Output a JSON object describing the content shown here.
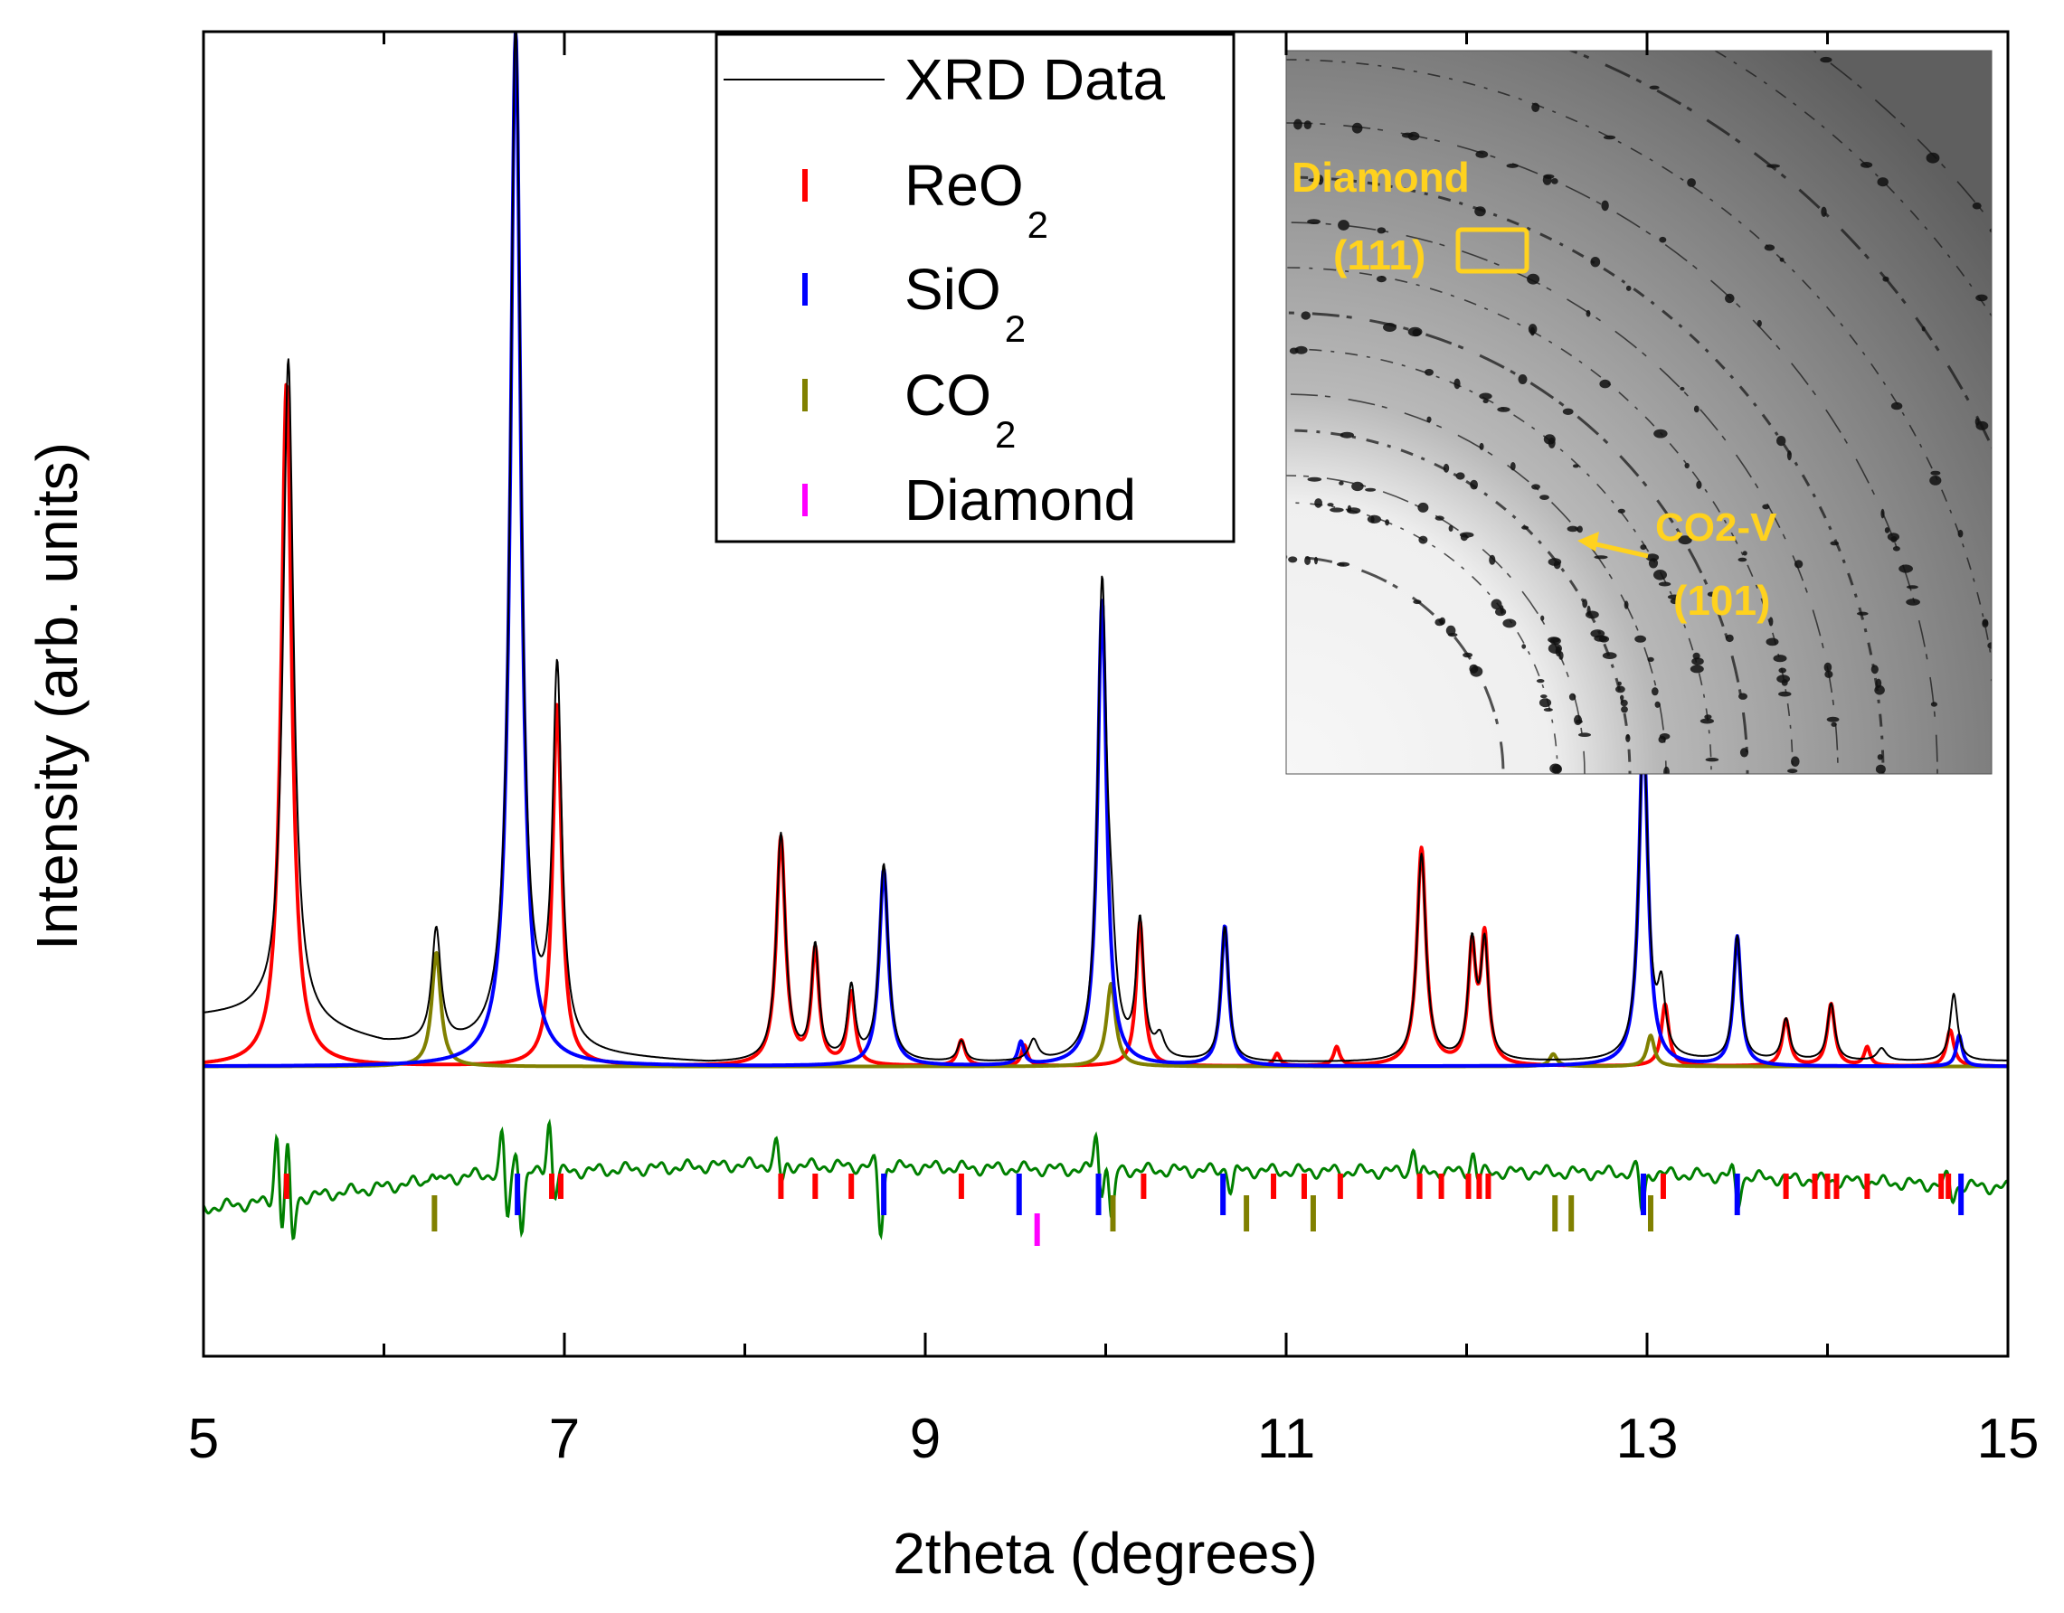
{
  "chart_data": {
    "type": "line",
    "title": "",
    "xlabel": "2theta (degrees)",
    "ylabel": "Intensity (arb. units)",
    "xlim": [
      5,
      15
    ],
    "ylim": [
      -0.28,
      1.0
    ],
    "yticks_labeled": false,
    "xticks": [
      5,
      7,
      9,
      11,
      13,
      15
    ],
    "xtick_labels": [
      "5",
      "7",
      "9",
      "11",
      "13",
      "15"
    ],
    "minor_xticks": [
      6,
      8,
      10,
      12,
      14
    ],
    "legend": {
      "placement": "top-center",
      "entries": [
        {
          "label": "XRD Data",
          "sub": "",
          "marker": "line",
          "color": "#000000"
        },
        {
          "label": "ReO",
          "sub": "2",
          "marker": "tick",
          "color": "#ff0000"
        },
        {
          "label": "SiO",
          "sub": "2",
          "marker": "tick",
          "color": "#0000ff"
        },
        {
          "label": "CO",
          "sub": "2",
          "marker": "tick",
          "color": "#808000"
        },
        {
          "label": "Diamond",
          "sub": "",
          "marker": "tick",
          "color": "#ff00ff"
        }
      ]
    },
    "series": [
      {
        "name": "ReO2",
        "color": "#ff0000",
        "baseline": 0,
        "peaks": [
          {
            "x": 5.46,
            "h": 0.66,
            "w": 0.035
          },
          {
            "x": 6.96,
            "h": 0.35,
            "w": 0.03
          },
          {
            "x": 8.2,
            "h": 0.22,
            "w": 0.03
          },
          {
            "x": 8.39,
            "h": 0.11,
            "w": 0.025
          },
          {
            "x": 8.59,
            "h": 0.07,
            "w": 0.025
          },
          {
            "x": 9.2,
            "h": 0.025,
            "w": 0.025
          },
          {
            "x": 9.55,
            "h": 0.02,
            "w": 0.02
          },
          {
            "x": 10.19,
            "h": 0.14,
            "w": 0.025
          },
          {
            "x": 10.95,
            "h": 0.012,
            "w": 0.02
          },
          {
            "x": 11.28,
            "h": 0.018,
            "w": 0.02
          },
          {
            "x": 11.75,
            "h": 0.21,
            "w": 0.03
          },
          {
            "x": 12.03,
            "h": 0.11,
            "w": 0.025
          },
          {
            "x": 12.1,
            "h": 0.12,
            "w": 0.025
          },
          {
            "x": 13.1,
            "h": 0.06,
            "w": 0.025
          },
          {
            "x": 13.77,
            "h": 0.045,
            "w": 0.025
          },
          {
            "x": 14.02,
            "h": 0.06,
            "w": 0.025
          },
          {
            "x": 14.22,
            "h": 0.018,
            "w": 0.02
          },
          {
            "x": 14.68,
            "h": 0.035,
            "w": 0.025
          }
        ]
      },
      {
        "name": "SiO2",
        "color": "#0000ff",
        "baseline": 0,
        "peaks": [
          {
            "x": 6.73,
            "h": 1.0,
            "w": 0.035
          },
          {
            "x": 8.77,
            "h": 0.19,
            "w": 0.03
          },
          {
            "x": 9.53,
            "h": 0.022,
            "w": 0.02
          },
          {
            "x": 9.98,
            "h": 0.45,
            "w": 0.03
          },
          {
            "x": 10.66,
            "h": 0.135,
            "w": 0.025
          },
          {
            "x": 12.98,
            "h": 0.33,
            "w": 0.03
          },
          {
            "x": 13.5,
            "h": 0.125,
            "w": 0.025
          },
          {
            "x": 14.73,
            "h": 0.03,
            "w": 0.02
          }
        ]
      },
      {
        "name": "CO2",
        "color": "#808000",
        "baseline": 0,
        "peaks": [
          {
            "x": 6.29,
            "h": 0.11,
            "w": 0.03
          },
          {
            "x": 10.03,
            "h": 0.08,
            "w": 0.03
          },
          {
            "x": 12.48,
            "h": 0.012,
            "w": 0.025
          },
          {
            "x": 13.02,
            "h": 0.03,
            "w": 0.025
          }
        ]
      },
      {
        "name": "XRD Data",
        "color": "#000000",
        "baseline": "sloped",
        "baseline_points": [
          [
            5.0,
            0.048
          ],
          [
            5.3,
            0.05
          ],
          [
            6.0,
            0.02
          ],
          [
            7.8,
            0.002
          ],
          [
            15.0,
            0.005
          ]
        ],
        "peaks": [
          {
            "x": 5.47,
            "h": 0.64,
            "w": 0.035
          },
          {
            "x": 6.29,
            "h": 0.11,
            "w": 0.03
          },
          {
            "x": 6.73,
            "h": 0.99,
            "w": 0.035
          },
          {
            "x": 6.96,
            "h": 0.36,
            "w": 0.03
          },
          {
            "x": 8.2,
            "h": 0.22,
            "w": 0.03
          },
          {
            "x": 8.39,
            "h": 0.11,
            "w": 0.025
          },
          {
            "x": 8.59,
            "h": 0.07,
            "w": 0.025
          },
          {
            "x": 8.77,
            "h": 0.19,
            "w": 0.03
          },
          {
            "x": 9.2,
            "h": 0.02,
            "w": 0.025
          },
          {
            "x": 9.6,
            "h": 0.02,
            "w": 0.03
          },
          {
            "x": 9.98,
            "h": 0.45,
            "w": 0.03
          },
          {
            "x": 10.03,
            "h": 0.07,
            "w": 0.03
          },
          {
            "x": 10.19,
            "h": 0.13,
            "w": 0.025
          },
          {
            "x": 10.3,
            "h": 0.02,
            "w": 0.03
          },
          {
            "x": 10.66,
            "h": 0.13,
            "w": 0.025
          },
          {
            "x": 11.75,
            "h": 0.2,
            "w": 0.03
          },
          {
            "x": 12.03,
            "h": 0.11,
            "w": 0.025
          },
          {
            "x": 12.1,
            "h": 0.11,
            "w": 0.025
          },
          {
            "x": 12.98,
            "h": 0.32,
            "w": 0.03
          },
          {
            "x": 13.08,
            "h": 0.06,
            "w": 0.025
          },
          {
            "x": 13.5,
            "h": 0.12,
            "w": 0.025
          },
          {
            "x": 13.77,
            "h": 0.04,
            "w": 0.025
          },
          {
            "x": 14.02,
            "h": 0.055,
            "w": 0.025
          },
          {
            "x": 14.3,
            "h": 0.012,
            "w": 0.03
          },
          {
            "x": 14.7,
            "h": 0.065,
            "w": 0.025
          }
        ]
      },
      {
        "name": "Difference",
        "color": "#008000",
        "offset_line": [
          [
            5.0,
            -0.137
          ],
          [
            5.4,
            -0.13
          ],
          [
            6.5,
            -0.105
          ],
          [
            8.0,
            -0.095
          ],
          [
            10.0,
            -0.1
          ],
          [
            13.0,
            -0.103
          ],
          [
            15.0,
            -0.117
          ]
        ],
        "spikes": [
          {
            "x": 5.42,
            "up": 0.07,
            "down": -0.04
          },
          {
            "x": 5.48,
            "up": 0.06,
            "down": -0.05
          },
          {
            "x": 6.28,
            "up": 0.012,
            "down": -0.005
          },
          {
            "x": 6.67,
            "up": 0.045,
            "down": -0.05
          },
          {
            "x": 6.75,
            "up": 0.03,
            "down": -0.06
          },
          {
            "x": 6.93,
            "up": 0.055,
            "down": -0.03
          },
          {
            "x": 8.19,
            "up": 0.025,
            "down": -0.02
          },
          {
            "x": 8.74,
            "up": 0.01,
            "down": -0.065
          },
          {
            "x": 9.96,
            "up": 0.04,
            "down": -0.03
          },
          {
            "x": 10.02,
            "up": 0.015,
            "down": -0.055
          },
          {
            "x": 10.68,
            "up": 0.005,
            "down": -0.02
          },
          {
            "x": 11.72,
            "up": 0.025,
            "down": -0.01
          },
          {
            "x": 12.05,
            "up": 0.02,
            "down": -0.01
          },
          {
            "x": 12.96,
            "up": 0.01,
            "down": -0.04
          },
          {
            "x": 13.49,
            "up": 0.01,
            "down": -0.03
          },
          {
            "x": 14.68,
            "up": 0.01,
            "down": -0.015
          }
        ]
      }
    ],
    "tick_marks": [
      {
        "phase": "ReO2",
        "color": "#ff0000",
        "x": [
          5.46,
          6.93,
          6.98,
          8.2,
          8.39,
          8.59,
          9.2,
          10.21,
          10.93,
          11.1,
          11.3,
          11.74,
          11.86,
          12.01,
          12.07,
          12.12,
          13.09,
          13.77,
          13.93,
          14.0,
          14.05,
          14.22,
          14.63,
          14.67
        ]
      },
      {
        "phase": "SiO2",
        "color": "#0000ff",
        "x": [
          6.74,
          8.77,
          9.52,
          9.96,
          10.65,
          12.98,
          13.5,
          14.74
        ]
      },
      {
        "phase": "CO2",
        "color": "#808000",
        "x": [
          6.28,
          10.04,
          10.78,
          11.15,
          12.49,
          12.58,
          13.02
        ]
      },
      {
        "phase": "Diamond",
        "color": "#ff00ff",
        "x": [
          9.62
        ]
      }
    ],
    "inset": {
      "description_hidden": true,
      "annotations": [
        {
          "text": "Diamond",
          "color": "#ffd21e"
        },
        {
          "text": "(111)",
          "color": "#ffd21e"
        },
        {
          "text": "CO2-V",
          "color": "#ffd21e"
        },
        {
          "text": "(101)",
          "color": "#ffd21e"
        }
      ]
    }
  }
}
